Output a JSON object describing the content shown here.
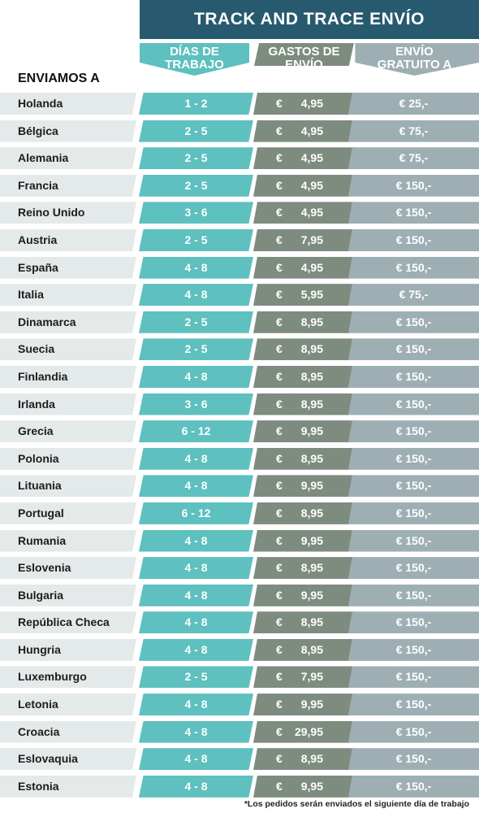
{
  "title": "TRACK AND TRACE ENVÍO",
  "headers": {
    "country": "ENVIAMOS A",
    "days_line1": "DÍAS DE",
    "days_line2": "TRABAJO",
    "cost_line1": "GASTOS DE",
    "cost_line2": "ENVÍO",
    "free_line1": "ENVÍO",
    "free_line2": "GRATUITO A"
  },
  "currency": "€",
  "rows": [
    {
      "country": "Holanda",
      "days": "1 - 2",
      "cost": "4,95",
      "free": "€ 25,-"
    },
    {
      "country": "Bélgica",
      "days": "2 - 5",
      "cost": "4,95",
      "free": "€ 75,-"
    },
    {
      "country": "Alemania",
      "days": "2 - 5",
      "cost": "4,95",
      "free": "€ 75,-"
    },
    {
      "country": "Francia",
      "days": "2 - 5",
      "cost": "4,95",
      "free": "€ 150,-"
    },
    {
      "country": "Reino Unido",
      "days": "3 - 6",
      "cost": "4,95",
      "free": "€ 150,-"
    },
    {
      "country": "Austria",
      "days": "2 - 5",
      "cost": "7,95",
      "free": "€ 150,-"
    },
    {
      "country": "España",
      "days": "4 - 8",
      "cost": "4,95",
      "free": "€ 150,-"
    },
    {
      "country": "Italia",
      "days": "4 - 8",
      "cost": "5,95",
      "free": "€ 75,-"
    },
    {
      "country": "Dinamarca",
      "days": "2 - 5",
      "cost": "8,95",
      "free": "€ 150,-"
    },
    {
      "country": "Suecia",
      "days": "2 - 5",
      "cost": "8,95",
      "free": "€ 150,-"
    },
    {
      "country": "Finlandia",
      "days": "4 - 8",
      "cost": "8,95",
      "free": "€ 150,-"
    },
    {
      "country": "Irlanda",
      "days": "3 - 6",
      "cost": "8,95",
      "free": "€ 150,-"
    },
    {
      "country": "Grecia",
      "days": "6 - 12",
      "cost": "9,95",
      "free": "€ 150,-"
    },
    {
      "country": "Polonia",
      "days": "4 - 8",
      "cost": "8,95",
      "free": "€ 150,-"
    },
    {
      "country": "Lituania",
      "days": "4 - 8",
      "cost": "9,95",
      "free": "€ 150,-"
    },
    {
      "country": "Portugal",
      "days": "6 - 12",
      "cost": "8,95",
      "free": "€ 150,-"
    },
    {
      "country": "Rumania",
      "days": "4 - 8",
      "cost": "9,95",
      "free": "€ 150,-"
    },
    {
      "country": "Eslovenia",
      "days": "4 - 8",
      "cost": "8,95",
      "free": "€ 150,-"
    },
    {
      "country": "Bulgaria",
      "days": "4 - 8",
      "cost": "9,95",
      "free": "€ 150,-"
    },
    {
      "country": "República Checa",
      "days": "4 - 8",
      "cost": "8,95",
      "free": "€ 150,-"
    },
    {
      "country": "Hungria",
      "days": "4 - 8",
      "cost": "8,95",
      "free": "€ 150,-"
    },
    {
      "country": "Luxemburgo",
      "days": "2 - 5",
      "cost": "7,95",
      "free": "€ 150,-"
    },
    {
      "country": "Letonia",
      "days": "4 - 8",
      "cost": "9,95",
      "free": "€ 150,-"
    },
    {
      "country": "Croacia",
      "days": "4 - 8",
      "cost": "29,95",
      "free": "€ 150,-"
    },
    {
      "country": "Eslovaquia",
      "days": "4 - 8",
      "cost": "8,95",
      "free": "€ 150,-"
    },
    {
      "country": "Estonia",
      "days": "4 - 8",
      "cost": "9,95",
      "free": "€ 150,-"
    }
  ],
  "footnote": "*Los pedidos serán enviados el siguiente día de trabajo",
  "colors": {
    "title_bg": "#285a6f",
    "days_bg": "#5ec0bf",
    "cost_bg": "#7e8c80",
    "free_bg": "#9eafb4",
    "country_bg": "#e4e9ea"
  }
}
